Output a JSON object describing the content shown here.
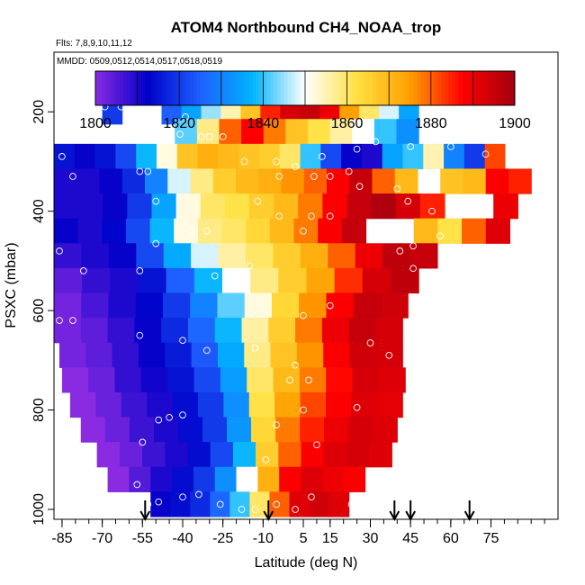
{
  "chart_data": {
    "type": "heatmap",
    "title": "ATOM4 Northbound CH4_NOAA_trop",
    "subtitle_flights": "Flts: 7,8,9,10,11,12",
    "subtitle_dates": "MMDD: 0509,0512,0514,0517,0518,0519",
    "xlabel": "Latitude (deg N)",
    "ylabel": "PSXC (mbar)",
    "xlim": [
      -88,
      100
    ],
    "ylim": [
      1020,
      80
    ],
    "x_ticks": [
      -85,
      -70,
      -55,
      -40,
      -25,
      -10,
      5,
      15,
      30,
      45,
      60,
      75
    ],
    "x_minor_step": 5,
    "y_ticks": [
      200,
      400,
      600,
      800,
      1000
    ],
    "colorbar": {
      "min": 1800,
      "max": 1900,
      "ticks": [
        1800,
        1820,
        1840,
        1860,
        1880,
        1900
      ],
      "colors": [
        "#8a2be2",
        "#0000c8",
        "#1e60ff",
        "#00b4ff",
        "#ffffff",
        "#ffe040",
        "#ffa000",
        "#ff0000",
        "#a00010"
      ]
    },
    "profile_arrows_lat": [
      -54,
      -8,
      39,
      45,
      67
    ],
    "rows": [
      {
        "p": 200,
        "lat_min": -70,
        "lat_max": 48,
        "values": [
          1820,
          1815,
          1818,
          1825,
          1835,
          1845,
          1855,
          1868,
          1885,
          1893,
          1895,
          1890,
          1875,
          1860,
          1848,
          1835
        ],
        "gap": [
          -66,
          -48
        ]
      },
      {
        "p": 240,
        "lat_min": -76,
        "lat_max": 48,
        "values": [
          1820,
          1815,
          1818,
          1828,
          1842,
          1858,
          1880,
          1888,
          1878,
          1868,
          1862,
          1856,
          1850,
          1840,
          1832
        ],
        "gap": [
          -74,
          -44
        ]
      },
      {
        "p": 290,
        "lat_min": -88,
        "lat_max": 88,
        "values": [
          1815,
          1812,
          1815,
          1822,
          1838,
          1852,
          1868,
          1872,
          1870,
          1868,
          1866,
          1860,
          1840,
          1822,
          1812,
          1810,
          1835,
          1840,
          1855,
          1830,
          1820,
          1882,
          1850
        ]
      },
      {
        "p": 340,
        "lat_min": -88,
        "lat_max": 90,
        "values": [
          1810,
          1810,
          1812,
          1818,
          1830,
          1848,
          1858,
          1866,
          1870,
          1872,
          1876,
          1880,
          1888,
          1895,
          1880,
          1870,
          1872,
          1868,
          1870,
          1888,
          1885
        ],
        "gap": [
          47,
          55
        ]
      },
      {
        "p": 390,
        "lat_min": -88,
        "lat_max": 85,
        "values": [
          1810,
          1810,
          1812,
          1820,
          1835,
          1852,
          1860,
          1862,
          1866,
          1870,
          1878,
          1888,
          1895,
          1898,
          1893,
          1885,
          1870,
          1860,
          1890
        ],
        "gap": [
          60,
          78
        ]
      },
      {
        "p": 440,
        "lat_min": -88,
        "lat_max": 82,
        "values": [
          1812,
          1810,
          1813,
          1822,
          1838,
          1852,
          1858,
          1860,
          1864,
          1870,
          1878,
          1888,
          1895,
          1893,
          1885,
          1870,
          1862,
          1880,
          1892
        ],
        "gap": [
          32,
          48
        ]
      },
      {
        "p": 490,
        "lat_min": -88,
        "lat_max": 55,
        "values": [
          1808,
          1810,
          1812,
          1822,
          1836,
          1848,
          1856,
          1860,
          1866,
          1872,
          1880,
          1890,
          1896,
          1895
        ]
      },
      {
        "p": 540,
        "lat_min": -88,
        "lat_max": 48,
        "values": [
          1804,
          1808,
          1810,
          1815,
          1825,
          1838,
          1850,
          1858,
          1866,
          1874,
          1884,
          1893,
          1896
        ]
      },
      {
        "p": 590,
        "lat_min": -88,
        "lat_max": 44,
        "values": [
          1802,
          1806,
          1810,
          1813,
          1820,
          1830,
          1842,
          1852,
          1864,
          1876,
          1888,
          1895,
          1894
        ]
      },
      {
        "p": 640,
        "lat_min": -88,
        "lat_max": 42,
        "values": [
          1802,
          1804,
          1808,
          1812,
          1818,
          1826,
          1838,
          1856,
          1866,
          1878,
          1890,
          1895,
          1893
        ]
      },
      {
        "p": 690,
        "lat_min": -86,
        "lat_max": 42,
        "values": [
          1802,
          1804,
          1808,
          1812,
          1816,
          1824,
          1836,
          1858,
          1868,
          1876,
          1888,
          1894,
          1893
        ]
      },
      {
        "p": 740,
        "lat_min": -85,
        "lat_max": 43,
        "values": [
          1800,
          1803,
          1808,
          1811,
          1815,
          1822,
          1834,
          1860,
          1870,
          1878,
          1887,
          1893,
          1892
        ]
      },
      {
        "p": 790,
        "lat_min": -82,
        "lat_max": 42,
        "values": [
          1800,
          1803,
          1807,
          1810,
          1814,
          1820,
          1832,
          1862,
          1874,
          1882,
          1888,
          1892,
          1891
        ]
      },
      {
        "p": 840,
        "lat_min": -78,
        "lat_max": 40,
        "values": [
          1800,
          1803,
          1807,
          1810,
          1814,
          1820,
          1833,
          1864,
          1878,
          1885,
          1890,
          1893,
          1892
        ]
      },
      {
        "p": 890,
        "lat_min": -72,
        "lat_max": 38,
        "values": [
          1800,
          1803,
          1807,
          1810,
          1814,
          1822,
          1838,
          1866,
          1880,
          1888,
          1892,
          1893,
          1892
        ]
      },
      {
        "p": 940,
        "lat_min": -68,
        "lat_max": 28,
        "values": [
          1800,
          1805,
          1810,
          1814,
          1820,
          1832,
          1850,
          1872,
          1888,
          1892,
          1890,
          1888
        ]
      },
      {
        "p": 990,
        "lat_min": -52,
        "lat_max": 22,
        "values": [
          1812,
          1814,
          1818,
          1826,
          1840,
          1860,
          1880,
          1892,
          1894,
          1892
        ]
      }
    ],
    "points": [
      [
        -69,
        190
      ],
      [
        -63,
        190
      ],
      [
        -39,
        210
      ],
      [
        -33,
        250
      ],
      [
        -30,
        250
      ],
      [
        -25,
        250
      ],
      [
        -41,
        245
      ],
      [
        -85,
        290
      ],
      [
        -17,
        300
      ],
      [
        -5,
        300
      ],
      [
        12,
        290
      ],
      [
        25,
        275
      ],
      [
        45,
        270
      ],
      [
        60,
        270
      ],
      [
        73,
        285
      ],
      [
        -81,
        330
      ],
      [
        -56,
        320
      ],
      [
        -53,
        320
      ],
      [
        2,
        310
      ],
      [
        15,
        330
      ],
      [
        22,
        320
      ],
      [
        32,
        260
      ],
      [
        -50,
        380
      ],
      [
        -4,
        330
      ],
      [
        9,
        330
      ],
      [
        26,
        350
      ],
      [
        40,
        355
      ],
      [
        44,
        380
      ],
      [
        -31,
        440
      ],
      [
        -37,
        440
      ],
      [
        -12,
        380
      ],
      [
        -4,
        410
      ],
      [
        8,
        410
      ],
      [
        15,
        410
      ],
      [
        53,
        400
      ],
      [
        70,
        380
      ],
      [
        -86,
        480
      ],
      [
        -50,
        465
      ],
      [
        5,
        440
      ],
      [
        41,
        480
      ],
      [
        46,
        470
      ],
      [
        56,
        450
      ],
      [
        -77,
        520
      ],
      [
        -56,
        520
      ],
      [
        -28,
        530
      ],
      [
        -15,
        510
      ],
      [
        46,
        515
      ],
      [
        -86,
        620
      ],
      [
        -81,
        620
      ],
      [
        -56,
        650
      ],
      [
        -40,
        660
      ],
      [
        -31,
        680
      ],
      [
        -13,
        675
      ],
      [
        5,
        610
      ],
      [
        15,
        590
      ],
      [
        0,
        740
      ],
      [
        7,
        740
      ],
      [
        2,
        710
      ],
      [
        30,
        665
      ],
      [
        37,
        690
      ],
      [
        -45,
        815
      ],
      [
        -49,
        820
      ],
      [
        -40,
        810
      ],
      [
        -5,
        830
      ],
      [
        5,
        800
      ],
      [
        25,
        795
      ],
      [
        -55,
        865
      ],
      [
        -9,
        900
      ],
      [
        10,
        870
      ],
      [
        -57,
        950
      ],
      [
        -53,
        990
      ],
      [
        -49,
        985
      ],
      [
        -40,
        975
      ],
      [
        -34,
        970
      ],
      [
        -26,
        990
      ],
      [
        -18,
        1000
      ],
      [
        -13,
        1000
      ],
      [
        -5,
        990
      ],
      [
        2,
        1000
      ],
      [
        8,
        975
      ],
      [
        23,
        990
      ]
    ]
  }
}
